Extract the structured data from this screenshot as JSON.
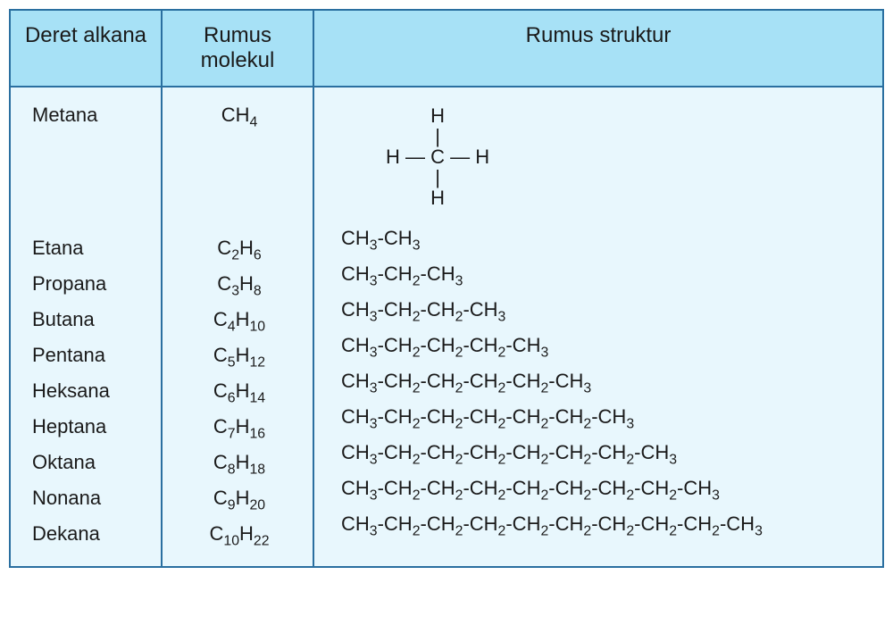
{
  "colors": {
    "header_bg": "#a7e1f6",
    "body_bg": "#e8f7fd",
    "border": "#2a6fa0",
    "text": "#1a1a1a"
  },
  "fontsize": {
    "header": 24,
    "body": 22
  },
  "columns": {
    "name": "Deret alkana",
    "mol": "Rumus molekul",
    "struct": "Rumus struktur"
  },
  "methane_diagram": {
    "l1": "H",
    "l2": "|",
    "l3": "H — C — H",
    "l4": "|",
    "l5": "H"
  },
  "rows": [
    {
      "name": "Metana",
      "mol_html": "CH<sub>4</sub>",
      "struct_html": "__METHANE__"
    },
    {
      "name": "Etana",
      "mol_html": "C<sub>2</sub>H<sub>6</sub>",
      "struct_html": "CH<sub>3</sub>-CH<sub>3</sub>"
    },
    {
      "name": "Propana",
      "mol_html": "C<sub>3</sub>H<sub>8</sub>",
      "struct_html": "CH<sub>3</sub>-CH<sub>2</sub>-CH<sub>3</sub>"
    },
    {
      "name": "Butana",
      "mol_html": "C<sub>4</sub>H<sub>10</sub>",
      "struct_html": "CH<sub>3</sub>-CH<sub>2</sub>-CH<sub>2</sub>-CH<sub>3</sub>"
    },
    {
      "name": "Pentana",
      "mol_html": "C<sub>5</sub>H<sub>12</sub>",
      "struct_html": "CH<sub>3</sub>-CH<sub>2</sub>-CH<sub>2</sub>-CH<sub>2</sub>-CH<sub>3</sub>"
    },
    {
      "name": "Heksana",
      "mol_html": "C<sub>6</sub>H<sub>14</sub>",
      "struct_html": "CH<sub>3</sub>-CH<sub>2</sub>-CH<sub>2</sub>-CH<sub>2</sub>-CH<sub>2</sub>-CH<sub>3</sub>"
    },
    {
      "name": "Heptana",
      "mol_html": "C<sub>7</sub>H<sub>16</sub>",
      "struct_html": "CH<sub>3</sub>-CH<sub>2</sub>-CH<sub>2</sub>-CH<sub>2</sub>-CH<sub>2</sub>-CH<sub>2</sub>-CH<sub>3</sub>"
    },
    {
      "name": "Oktana",
      "mol_html": "C<sub>8</sub>H<sub>18</sub>",
      "struct_html": "CH<sub>3</sub>-CH<sub>2</sub>-CH<sub>2</sub>-CH<sub>2</sub>-CH<sub>2</sub>-CH<sub>2</sub>-CH<sub>2</sub>-CH<sub>3</sub>"
    },
    {
      "name": "Nonana",
      "mol_html": "C<sub>9</sub>H<sub>20</sub>",
      "struct_html": "CH<sub>3</sub>-CH<sub>2</sub>-CH<sub>2</sub>-CH<sub>2</sub>-CH<sub>2</sub>-CH<sub>2</sub>-CH<sub>2</sub>-CH<sub>2</sub>-CH<sub>3</sub>"
    },
    {
      "name": "Dekana",
      "mol_html": "C<sub>10</sub>H<sub>22</sub>",
      "struct_html": "CH<sub>3</sub>-CH<sub>2</sub>-CH<sub>2</sub>-CH<sub>2</sub>-CH<sub>2</sub>-CH<sub>2</sub>-CH<sub>2</sub>-CH<sub>2</sub>-CH<sub>2</sub>-CH<sub>3</sub>"
    }
  ]
}
